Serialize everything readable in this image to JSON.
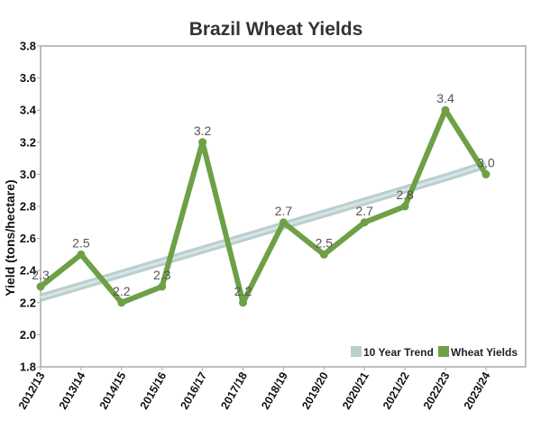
{
  "chart_data": {
    "type": "line",
    "title": "Brazil Wheat Yields",
    "xlabel": "",
    "ylabel": "Yield (tons/hectare)",
    "ylim": [
      1.8,
      3.8
    ],
    "yticks": [
      "1.8",
      "2.0",
      "2.2",
      "2.4",
      "2.6",
      "2.8",
      "3.0",
      "3.2",
      "3.4",
      "3.6",
      "3.8"
    ],
    "categories": [
      "2012/13",
      "2013/14",
      "2014/15",
      "2015/16",
      "2016/17",
      "2017/18",
      "2018/19",
      "2019/20",
      "2020/21",
      "2021/22",
      "2022/23",
      "2023/24"
    ],
    "grid": false,
    "legend_position": "bottom-right",
    "series": [
      {
        "name": "10 Year Trend",
        "type": "trend",
        "color": "#b9cfcf",
        "values": [
          2.23,
          2.305,
          2.38,
          2.455,
          2.53,
          2.605,
          2.68,
          2.755,
          2.83,
          2.905,
          2.98,
          3.06
        ],
        "labels": []
      },
      {
        "name": "Wheat Yields",
        "type": "line",
        "color": "#6ea046",
        "values": [
          2.3,
          2.5,
          2.2,
          2.3,
          3.2,
          2.2,
          2.7,
          2.5,
          2.7,
          2.8,
          3.4,
          3.0
        ],
        "labels": [
          "2.3",
          "2.5",
          "2.2",
          "2.3",
          "3.2",
          "2.2",
          "2.7",
          "2.5",
          "2.7",
          "2.8",
          "3.4",
          "3.0"
        ]
      }
    ]
  }
}
